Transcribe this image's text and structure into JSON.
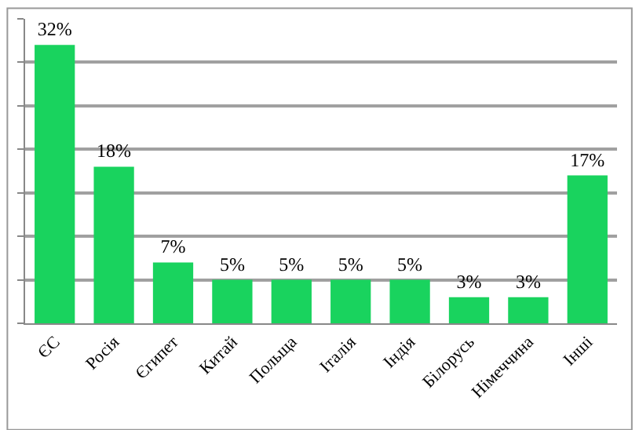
{
  "chart_data": {
    "type": "bar",
    "categories": [
      "ЄС",
      "Росія",
      "Єгипет",
      "Китай",
      "Польща",
      "Італія",
      "Індія",
      "Білорусь",
      "Німеччина",
      "Інші"
    ],
    "values": [
      32,
      18,
      7,
      5,
      5,
      5,
      5,
      3,
      3,
      17
    ],
    "value_labels": [
      "32%",
      "18%",
      "7%",
      "5%",
      "5%",
      "5%",
      "5%",
      "3%",
      "3%",
      "17%"
    ],
    "color": "#19d35e",
    "ylim": [
      0,
      35
    ],
    "yticks": [
      {
        "value": 0,
        "label": null
      },
      {
        "value": 5,
        "label": null
      },
      {
        "value": 10,
        "label": null
      },
      {
        "value": 15,
        "label": null
      },
      {
        "value": 20,
        "label": null
      },
      {
        "value": 25,
        "label": null
      },
      {
        "value": 30,
        "label": null
      },
      {
        "value": 35,
        "label": null
      }
    ],
    "grid": "y",
    "tick_labels": "x",
    "legend": false
  }
}
